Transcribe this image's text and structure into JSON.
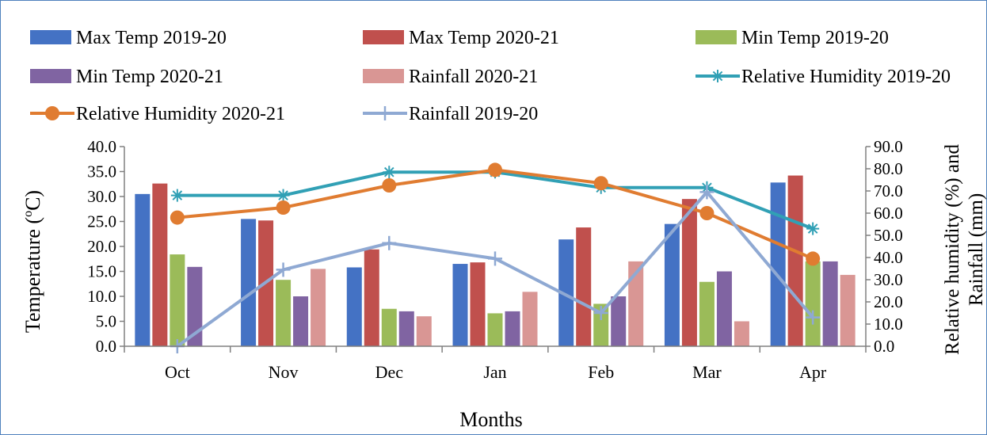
{
  "chart_data": {
    "type": "bar",
    "title": "",
    "categories": [
      "Oct",
      "Nov",
      "Dec",
      "Jan",
      "Feb",
      "Mar",
      "Apr"
    ],
    "xlabel": "Months",
    "ylabel": "Temperature (oC)",
    "ylabel_main": "Temperature (",
    "ylabel_sup": "o",
    "ylabel_end": "C)",
    "y2label_line1": "Relative humidity (%) and",
    "y2label_line2": "Rainfall (mm)",
    "ylim": [
      0,
      40
    ],
    "y2lim": [
      0,
      90
    ],
    "yticks": [
      "0.0",
      "5.0",
      "10.0",
      "15.0",
      "20.0",
      "25.0",
      "30.0",
      "35.0",
      "40.0"
    ],
    "y2ticks": [
      "0.0",
      "10.0",
      "20.0",
      "30.0",
      "40.0",
      "50.0",
      "60.0",
      "70.0",
      "80.0",
      "90.0"
    ],
    "grid": false,
    "legend_position": "top",
    "bar_series": [
      {
        "name": "Max Temp 2019-20",
        "color": "#4472c4",
        "values": [
          30.5,
          25.5,
          15.8,
          16.5,
          21.4,
          24.5,
          32.8
        ]
      },
      {
        "name": "Max Temp 2020-21",
        "color": "#c0504d",
        "values": [
          32.6,
          25.2,
          19.4,
          16.8,
          23.8,
          29.5,
          34.2
        ]
      },
      {
        "name": "Min Temp  2019-20",
        "color": "#9bbb59",
        "values": [
          18.4,
          13.3,
          7.5,
          6.6,
          8.5,
          12.9,
          17.0
        ]
      },
      {
        "name": "Min Temp  2020-21",
        "color": "#8064a2",
        "values": [
          15.9,
          10.0,
          7.0,
          7.0,
          10.0,
          15.0,
          17.0
        ]
      },
      {
        "name": "Rainfall  2020-21",
        "color": "#d99694",
        "values": [
          0,
          15.5,
          6.0,
          10.9,
          17.0,
          5.0,
          14.3
        ]
      }
    ],
    "line_series": [
      {
        "name": "Relative Humidity  2019-20",
        "color": "#31a0b5",
        "marker": "asterisk",
        "values": [
          68,
          68,
          78.5,
          78.5,
          71.5,
          71.5,
          53
        ]
      },
      {
        "name": "Relative Humidity  2020-21",
        "color": "#e07c31",
        "marker": "circle",
        "values": [
          58,
          62.5,
          72.5,
          79.5,
          73.5,
          60,
          39.5
        ]
      },
      {
        "name": "Rainfall  2019-20",
        "color": "#8fa9d3",
        "marker": "plus",
        "values": [
          0,
          34.5,
          46.5,
          39.5,
          15,
          69.5,
          13
        ]
      }
    ],
    "legend_order": [
      {
        "kind": "bar",
        "index": 0
      },
      {
        "kind": "bar",
        "index": 1
      },
      {
        "kind": "bar",
        "index": 2
      },
      {
        "kind": "bar",
        "index": 3
      },
      {
        "kind": "bar",
        "index": 4
      },
      {
        "kind": "line",
        "index": 0
      },
      {
        "kind": "line",
        "index": 1
      },
      {
        "kind": "line",
        "index": 2
      }
    ]
  }
}
